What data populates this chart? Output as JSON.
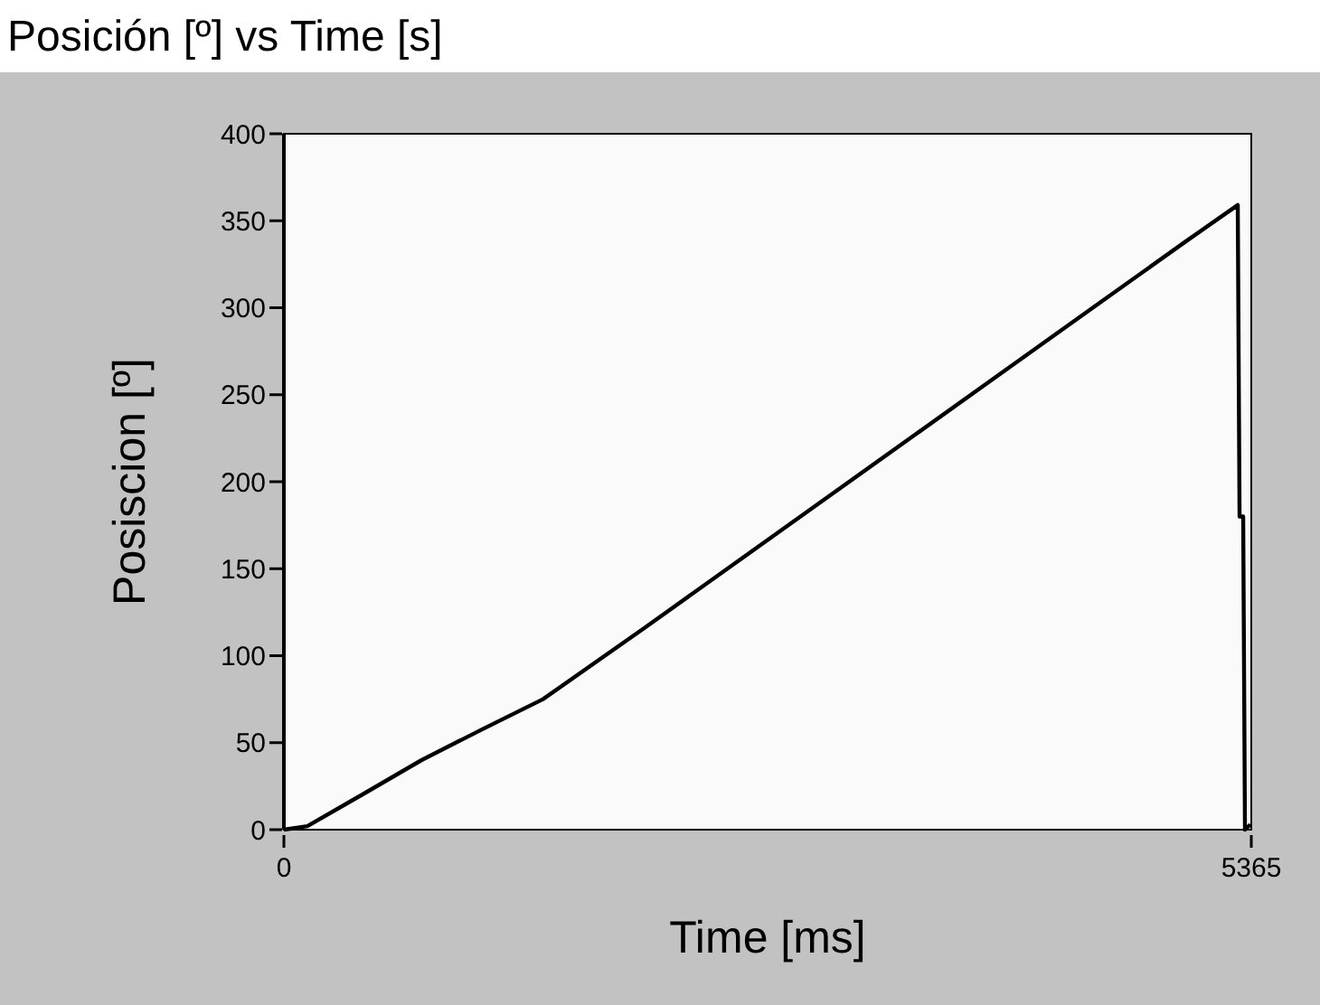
{
  "chart_data": {
    "type": "line",
    "title": "Posición [º] vs Time [s]",
    "xlabel": "Time [ms]",
    "ylabel": "Posiscion [º]",
    "x": [
      0,
      130,
      432,
      764,
      1106,
      1437,
      2000,
      2500,
      3000,
      3500,
      4000,
      4500,
      5000,
      5290,
      5300,
      5320,
      5330,
      5360
    ],
    "series": [
      {
        "color": "#000000",
        "values": [
          0,
          2,
          20,
          40,
          58,
          75,
          116,
          153,
          190,
          227,
          264,
          301,
          338,
          359,
          180,
          180,
          0,
          3
        ]
      }
    ],
    "xlim": [
      0,
      5365
    ],
    "xticks": [
      0,
      5365
    ],
    "ylim": [
      0,
      400
    ],
    "yticks": [
      0,
      50,
      100,
      150,
      200,
      250,
      300,
      350,
      400
    ],
    "grid": false,
    "marker": "none",
    "line_style": "solid"
  }
}
